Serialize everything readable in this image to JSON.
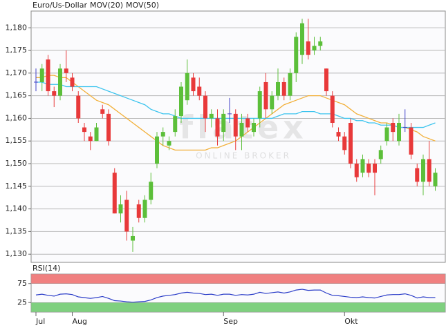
{
  "chart_data": [
    {
      "type": "candlestick",
      "name": "Euro/Us-Dollar",
      "name_color": "#d0502a",
      "up_color": "#5cbf3a",
      "down_color": "#e8393a",
      "flat_color": "#4040c8",
      "categories": [
        "Jul",
        null,
        null,
        null,
        null,
        null,
        "Aug",
        null,
        null,
        null,
        null,
        null,
        null,
        null,
        null,
        null,
        null,
        null,
        null,
        null,
        null,
        null,
        null,
        null,
        null,
        null,
        null,
        null,
        null,
        null,
        null,
        "Sep",
        null,
        null,
        null,
        null,
        null,
        null,
        null,
        null,
        null,
        null,
        null,
        null,
        null,
        null,
        null,
        null,
        null,
        null,
        null,
        "Okt",
        null,
        null,
        null,
        null,
        null,
        null,
        null,
        null,
        null,
        null,
        null,
        null,
        null,
        null,
        null
      ],
      "open": [
        1.168,
        1.168,
        1.173,
        1.166,
        1.165,
        1.171,
        1.169,
        1.165,
        1.158,
        1.156,
        1.155,
        1.162,
        1.161,
        1.148,
        1.139,
        1.142,
        1.133,
        1.141,
        1.138,
        1.142,
        1.15,
        1.156,
        1.154,
        1.157,
        1.1605,
        1.164,
        1.169,
        1.167,
        1.165,
        1.16,
        1.16,
        1.157,
        1.161,
        1.161,
        1.156,
        1.16,
        1.157,
        1.16,
        1.168,
        1.162,
        1.165,
        1.168,
        1.165,
        1.17,
        1.174,
        1.177,
        1.175,
        1.176,
        1.171,
        1.165,
        1.157,
        1.156,
        1.159,
        1.15,
        1.148,
        1.15,
        1.15,
        1.151,
        1.155,
        1.159,
        1.155,
        1.158,
        1.158,
        1.149,
        1.146,
        1.151,
        1.145
      ],
      "high": [
        1.171,
        1.172,
        1.174,
        1.167,
        1.172,
        1.175,
        1.17,
        1.166,
        1.159,
        1.157,
        1.159,
        1.163,
        1.162,
        1.149,
        1.143,
        1.144,
        1.136,
        1.142,
        1.143,
        1.148,
        1.157,
        1.158,
        1.156,
        1.162,
        1.168,
        1.173,
        1.17,
        1.169,
        1.166,
        1.162,
        1.162,
        1.162,
        1.1645,
        1.162,
        1.161,
        1.161,
        1.16,
        1.167,
        1.17,
        1.166,
        1.171,
        1.169,
        1.171,
        1.179,
        1.182,
        1.182,
        1.178,
        1.178,
        1.171,
        1.166,
        1.158,
        1.157,
        1.16,
        1.151,
        1.152,
        1.151,
        1.151,
        1.154,
        1.159,
        1.16,
        1.161,
        1.162,
        1.159,
        1.15,
        1.152,
        1.155,
        1.149
      ],
      "low": [
        1.166,
        1.166,
        1.165,
        1.1625,
        1.164,
        1.168,
        1.166,
        1.159,
        1.155,
        1.153,
        1.155,
        1.16,
        1.154,
        1.139,
        1.137,
        1.133,
        1.1305,
        1.137,
        1.137,
        1.141,
        1.149,
        1.154,
        1.153,
        1.156,
        1.159,
        1.163,
        1.165,
        1.164,
        1.157,
        1.158,
        1.154,
        1.155,
        1.159,
        1.153,
        1.153,
        1.157,
        1.156,
        1.158,
        1.16,
        1.161,
        1.164,
        1.164,
        1.164,
        1.168,
        1.172,
        1.173,
        1.174,
        1.175,
        1.165,
        1.158,
        1.155,
        1.152,
        1.149,
        1.146,
        1.147,
        1.147,
        1.143,
        1.15,
        1.154,
        1.155,
        1.154,
        1.157,
        1.151,
        1.145,
        1.143,
        1.145,
        1.144
      ],
      "close": [
        1.168,
        1.171,
        1.166,
        1.165,
        1.171,
        1.17,
        1.167,
        1.16,
        1.157,
        1.155,
        1.158,
        1.161,
        1.155,
        1.139,
        1.141,
        1.135,
        1.134,
        1.138,
        1.142,
        1.146,
        1.156,
        1.157,
        1.155,
        1.1605,
        1.167,
        1.17,
        1.166,
        1.165,
        1.16,
        1.161,
        1.156,
        1.161,
        1.161,
        1.156,
        1.159,
        1.158,
        1.159,
        1.166,
        1.162,
        1.165,
        1.168,
        1.165,
        1.17,
        1.178,
        1.181,
        1.174,
        1.176,
        1.177,
        1.166,
        1.159,
        1.156,
        1.153,
        1.15,
        1.147,
        1.151,
        1.148,
        1.148,
        1.153,
        1.158,
        1.157,
        1.159,
        1.158,
        1.152,
        1.146,
        1.151,
        1.146,
        1.148
      ],
      "overlays": [
        {
          "name": "MOV(20)",
          "color": "#f2b03a",
          "values": [
            1.169,
            1.169,
            1.1695,
            1.1695,
            1.169,
            1.169,
            1.168,
            1.167,
            1.166,
            1.165,
            1.164,
            1.1635,
            1.163,
            1.162,
            1.161,
            1.16,
            1.159,
            1.158,
            1.157,
            1.156,
            1.155,
            1.154,
            1.1535,
            1.153,
            1.153,
            1.153,
            1.153,
            1.153,
            1.153,
            1.1535,
            1.1535,
            1.154,
            1.1545,
            1.155,
            1.156,
            1.157,
            1.158,
            1.159,
            1.16,
            1.161,
            1.162,
            1.163,
            1.1635,
            1.164,
            1.1645,
            1.165,
            1.165,
            1.165,
            1.1645,
            1.164,
            1.1635,
            1.163,
            1.162,
            1.161,
            1.1605,
            1.16,
            1.1595,
            1.159,
            1.159,
            1.1585,
            1.158,
            1.158,
            1.1575,
            1.157,
            1.156,
            1.1555,
            1.155
          ]
        },
        {
          "name": "MOV(50)",
          "color": "#3cc4ee",
          "values": [
            1.168,
            1.168,
            1.1675,
            1.1675,
            1.1675,
            1.167,
            1.167,
            1.167,
            1.167,
            1.167,
            1.167,
            1.1665,
            1.166,
            1.1655,
            1.165,
            1.1645,
            1.164,
            1.1635,
            1.163,
            1.162,
            1.1615,
            1.161,
            1.161,
            1.1605,
            1.16,
            1.16,
            1.16,
            1.16,
            1.16,
            1.16,
            1.16,
            1.16,
            1.16,
            1.16,
            1.16,
            1.16,
            1.16,
            1.16,
            1.16,
            1.16,
            1.1605,
            1.161,
            1.161,
            1.161,
            1.1615,
            1.1615,
            1.1615,
            1.161,
            1.161,
            1.161,
            1.1605,
            1.16,
            1.16,
            1.1595,
            1.1595,
            1.159,
            1.159,
            1.1585,
            1.1585,
            1.1585,
            1.158,
            1.158,
            1.158,
            1.158,
            1.158,
            1.1585,
            1.159
          ]
        }
      ],
      "ylim": [
        1.1282,
        1.1837
      ],
      "yticks": [
        {
          "value": 1.13,
          "label": "1,130"
        },
        {
          "value": 1.135,
          "label": "1,135"
        },
        {
          "value": 1.14,
          "label": "1,140"
        },
        {
          "value": 1.145,
          "label": "1,145"
        },
        {
          "value": 1.15,
          "label": "1,150"
        },
        {
          "value": 1.155,
          "label": "1,155"
        },
        {
          "value": 1.16,
          "label": "1,160"
        },
        {
          "value": 1.165,
          "label": "1,165"
        },
        {
          "value": 1.17,
          "label": "1,170"
        },
        {
          "value": 1.175,
          "label": "1,175"
        },
        {
          "value": 1.18,
          "label": "1,180"
        }
      ],
      "grid": true,
      "watermark": {
        "title": "flatex",
        "subtitle": "ONLINE BROKER"
      }
    },
    {
      "type": "line",
      "series": [
        {
          "name": "RSI(14)",
          "color": "#2a3cc8",
          "values": [
            45,
            47,
            44,
            42,
            47,
            48,
            46,
            40,
            38,
            36,
            38,
            41,
            36,
            30,
            29,
            27,
            26,
            27,
            28,
            32,
            38,
            42,
            44,
            46,
            50,
            52,
            50,
            49,
            46,
            47,
            44,
            47,
            47,
            44,
            46,
            45,
            47,
            52,
            49,
            51,
            53,
            50,
            53,
            58,
            60,
            57,
            58,
            58,
            50,
            44,
            43,
            41,
            39,
            38,
            40,
            38,
            37,
            41,
            45,
            46,
            46,
            48,
            44,
            37,
            40,
            38,
            38
          ]
        }
      ],
      "ylim": [
        0,
        100
      ],
      "yticks": [
        25,
        75
      ],
      "bands": [
        {
          "range": [
            75,
            100
          ],
          "color": "#f08080"
        },
        {
          "range": [
            0,
            25
          ],
          "color": "#7fd07f"
        }
      ]
    }
  ]
}
